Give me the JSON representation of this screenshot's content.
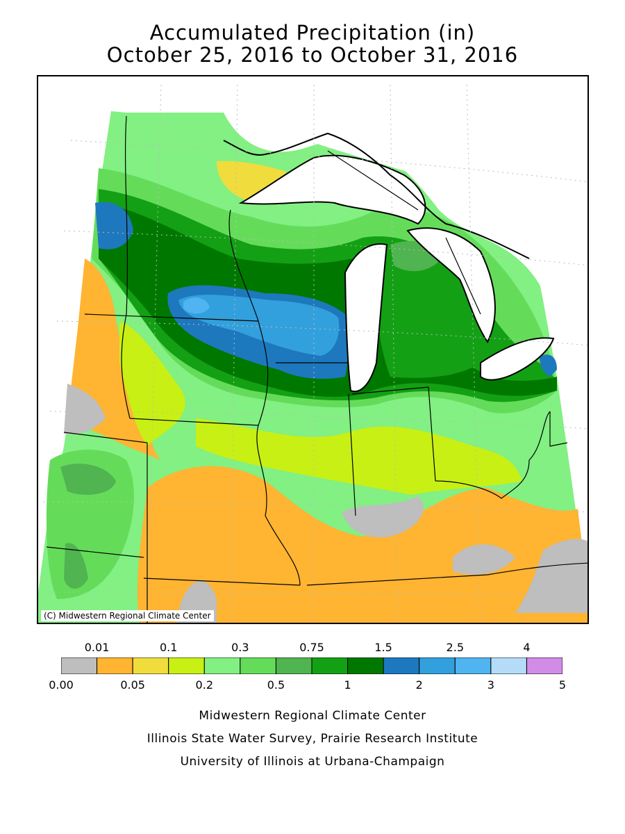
{
  "title": {
    "line1": "Accumulated Precipitation (in)",
    "line2": "October 25, 2016 to October 31, 2016"
  },
  "map": {
    "copyright": "(C) Midwestern Regional Climate Center",
    "colors": {
      "land_outline": "#000000",
      "lake": "#ffffff",
      "grid": "#bbbbbb"
    }
  },
  "legend": {
    "upper_labels": [
      "0.01",
      "0.1",
      "0.3",
      "0.75",
      "1.5",
      "2.5",
      "4"
    ],
    "lower_labels": [
      "0.00",
      "0.05",
      "0.2",
      "0.5",
      "1",
      "2",
      "3",
      "5"
    ],
    "colors": [
      "#bebebe",
      "#ffb432",
      "#f0dc3c",
      "#c8f014",
      "#82f082",
      "#64dc5a",
      "#50b450",
      "#14a014",
      "#007800",
      "#1e78be",
      "#32a0dc",
      "#50b4f0",
      "#b4dcf8",
      "#d28ce6"
    ]
  },
  "credits": {
    "line1": "Midwestern Regional Climate Center",
    "line2": "Illinois State Water Survey, Prairie Research Institute",
    "line3": "University of Illinois at Urbana-Champaign"
  }
}
